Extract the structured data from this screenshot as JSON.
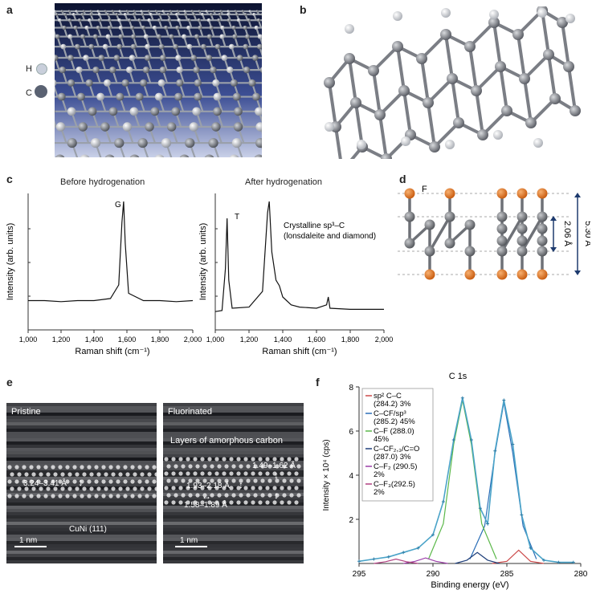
{
  "panels": {
    "a": {
      "letter": "a",
      "legend": [
        {
          "symbol": "H",
          "color": "#c9cfdb"
        },
        {
          "symbol": "C",
          "color": "#5a6272"
        }
      ]
    },
    "b": {
      "letter": "b"
    },
    "c": {
      "letter": "c",
      "left_title": "Before hydrogenation",
      "right_title": "After hydrogenation",
      "ylabel": "Intensity (arb. units)",
      "xlabel": "Raman shift (cm⁻¹)",
      "left_peak": "G",
      "right_peak": "T",
      "right_annotation_1": "Crystalline sp³–C",
      "right_annotation_2": "(lonsdaleite and diamond)",
      "xticks": [
        "1,000",
        "1,200",
        "1,400",
        "1,600",
        "1,800",
        "2,000"
      ]
    },
    "d": {
      "letter": "d",
      "atom_label": "F",
      "dim_inner": "2.06 Å",
      "dim_outer": "5.30 Å"
    },
    "e": {
      "letter": "e",
      "left_label": "Pristine",
      "right_label": "Fluorinated",
      "right_sub": "Layers of amorphous carbon",
      "left_spacing": "3.24–3.41 Å",
      "left_scale": "1 nm",
      "left_substrate": "CuNi (111)",
      "right_spacing_1": "1.49–1.62 Å",
      "right_spacing_2": "1.93–2.18 Å",
      "right_spacing_3": "1.58–1.89 Å",
      "right_scale": "1 nm"
    },
    "f": {
      "letter": "f",
      "title": "C 1s",
      "legend": [
        {
          "line1": "sp² C–C",
          "line2": "(284.2) 3%",
          "color": "#cc4a4a"
        },
        {
          "line1": "C–CF/sp³",
          "line2": "(285.2) 45%",
          "color": "#2c6fb8"
        },
        {
          "line1": "C–F (288.0)",
          "line2": "45%",
          "color": "#5bb84a"
        },
        {
          "line1": "C–CF₂,₃/C=O",
          "line2": "(287.0) 3%",
          "color": "#1f3f7a"
        },
        {
          "line1": "C–F₂ (290.5)",
          "line2": "2%",
          "color": "#9b3ea8"
        },
        {
          "line1": "C–F₃(292.5)",
          "line2": "2%",
          "color": "#b04080"
        }
      ]
    }
  },
  "chart_data": [
    {
      "type": "line",
      "title": "Before hydrogenation",
      "xlabel": "Raman shift (cm⁻¹)",
      "ylabel": "Intensity (arb. units)",
      "xlim": [
        1000,
        2000
      ],
      "series": [
        {
          "x": [
            1000,
            1100,
            1200,
            1300,
            1400,
            1500,
            1550,
            1570,
            1580,
            1590,
            1610,
            1700,
            1800,
            1900,
            2000
          ],
          "values": [
            0.05,
            0.05,
            0.04,
            0.05,
            0.05,
            0.07,
            0.2,
            0.8,
            1.0,
            0.6,
            0.12,
            0.05,
            0.05,
            0.04,
            0.05
          ]
        }
      ]
    },
    {
      "type": "line",
      "title": "After hydrogenation",
      "xlabel": "Raman shift (cm⁻¹)",
      "ylabel": "Intensity (arb. units)",
      "xlim": [
        1000,
        2000
      ],
      "series": [
        {
          "x": [
            1000,
            1040,
            1060,
            1070,
            1080,
            1100,
            1200,
            1280,
            1310,
            1320,
            1335,
            1360,
            1380,
            1400,
            1450,
            1500,
            1600,
            1660,
            1670,
            1680,
            1800,
            2000
          ],
          "values": [
            0.02,
            0.03,
            0.4,
            0.85,
            0.3,
            0.05,
            0.06,
            0.2,
            0.9,
            1.0,
            0.55,
            0.3,
            0.25,
            0.15,
            0.08,
            0.06,
            0.05,
            0.08,
            0.15,
            0.05,
            0.04,
            0.04
          ]
        }
      ]
    },
    {
      "type": "line",
      "title": "C 1s",
      "xlabel": "Binding energy (eV)",
      "ylabel": "Intensity × 10⁴ (cps)",
      "xlim": [
        295,
        280
      ],
      "ylim": [
        0,
        8
      ],
      "xticks": [
        295,
        290,
        285,
        280
      ],
      "yticks": [
        2,
        4,
        6,
        8
      ],
      "series": [
        {
          "name": "sp² C–C",
          "x": [
            286,
            285,
            284.2,
            283.4,
            282.5
          ],
          "values": [
            0,
            0.1,
            0.6,
            0.1,
            0
          ]
        },
        {
          "name": "C–CF/sp³",
          "x": [
            287.5,
            286.5,
            285.8,
            285.2,
            284.6,
            283.9,
            283
          ],
          "values": [
            0.2,
            1.7,
            5.0,
            7.3,
            5.0,
            1.7,
            0.2
          ]
        },
        {
          "name": "C–F (288.0)",
          "x": [
            290.3,
            289.3,
            288.6,
            288,
            287.4,
            286.7,
            285.7
          ],
          "values": [
            0.2,
            1.8,
            5.4,
            7.4,
            5.4,
            1.8,
            0.2
          ]
        },
        {
          "name": "C–CF₂,₃/C=O",
          "x": [
            288.5,
            287.7,
            287,
            286.3,
            285.5
          ],
          "values": [
            0,
            0.15,
            0.5,
            0.15,
            0
          ]
        },
        {
          "name": "C–F₂ (290.5)",
          "x": [
            292,
            291.2,
            290.5,
            289.8,
            289
          ],
          "values": [
            0,
            0.1,
            0.25,
            0.1,
            0
          ]
        },
        {
          "name": "C–F₃(292.5)",
          "x": [
            294,
            293.2,
            292.5,
            291.8,
            291
          ],
          "values": [
            0,
            0.08,
            0.2,
            0.08,
            0
          ]
        },
        {
          "name": "envelope",
          "x": [
            295,
            294,
            293,
            292,
            291,
            290,
            289.3,
            288.6,
            288,
            287.4,
            286.8,
            286.3,
            285.8,
            285.2,
            284.6,
            284,
            283.4,
            282.5,
            281.5,
            280.5
          ],
          "values": [
            0.1,
            0.2,
            0.3,
            0.5,
            0.7,
            1.3,
            2.8,
            5.6,
            7.5,
            5.6,
            2.5,
            1.8,
            5.1,
            7.4,
            5.4,
            2.2,
            0.7,
            0.15,
            0.05,
            0.05
          ]
        }
      ]
    }
  ]
}
